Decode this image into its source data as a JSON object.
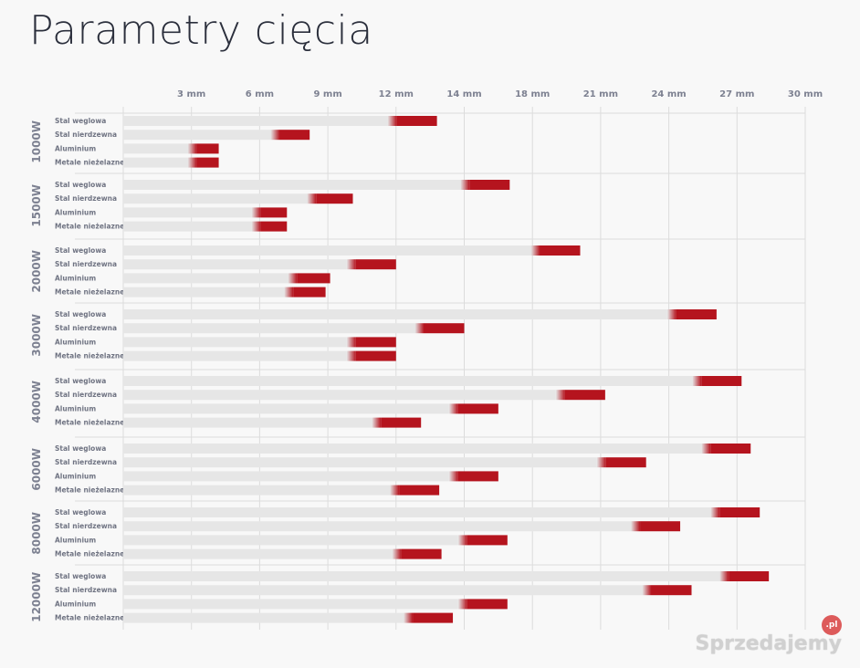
{
  "title": "Parametry cięcia",
  "watermark": {
    "text": "Sprzedajemy",
    "badge": ".pl"
  },
  "colors": {
    "accent": "#b5141e",
    "bar_bg": "#e6e6e6",
    "grid": "#dcdcdc"
  },
  "chart_data": {
    "type": "bar",
    "orientation": "horizontal",
    "xlabel": "",
    "ylabel": "",
    "x_ticks": [
      "3 mm",
      "6 mm",
      "9 mm",
      "12 mm",
      "14 mm",
      "18 mm",
      "21 mm",
      "24 mm",
      "27 mm",
      "30 mm"
    ],
    "categories": [
      "Stal weglowa",
      "Stal nierdzewna",
      "Aluminium",
      "Metale nieżelazne"
    ],
    "groups": [
      {
        "name": "1000W",
        "values": [
          13.8,
          8.2,
          4.2,
          4.2
        ]
      },
      {
        "name": "1500W",
        "values": [
          17.0,
          10.1,
          7.2,
          7.2
        ]
      },
      {
        "name": "2000W",
        "values": [
          20.1,
          12.0,
          9.1,
          8.9
        ]
      },
      {
        "name": "3000W",
        "values": [
          26.1,
          15.0,
          12.0,
          12.0
        ]
      },
      {
        "name": "4000W",
        "values": [
          27.2,
          21.2,
          16.5,
          13.1
        ]
      },
      {
        "name": "6000W",
        "values": [
          27.6,
          23.0,
          16.5,
          13.9
        ]
      },
      {
        "name": "8000W",
        "values": [
          28.0,
          24.5,
          16.9,
          14.0
        ]
      },
      {
        "name": "12000W",
        "values": [
          28.4,
          25.0,
          16.9,
          14.5
        ]
      }
    ],
    "legend": "none",
    "grid": true
  }
}
